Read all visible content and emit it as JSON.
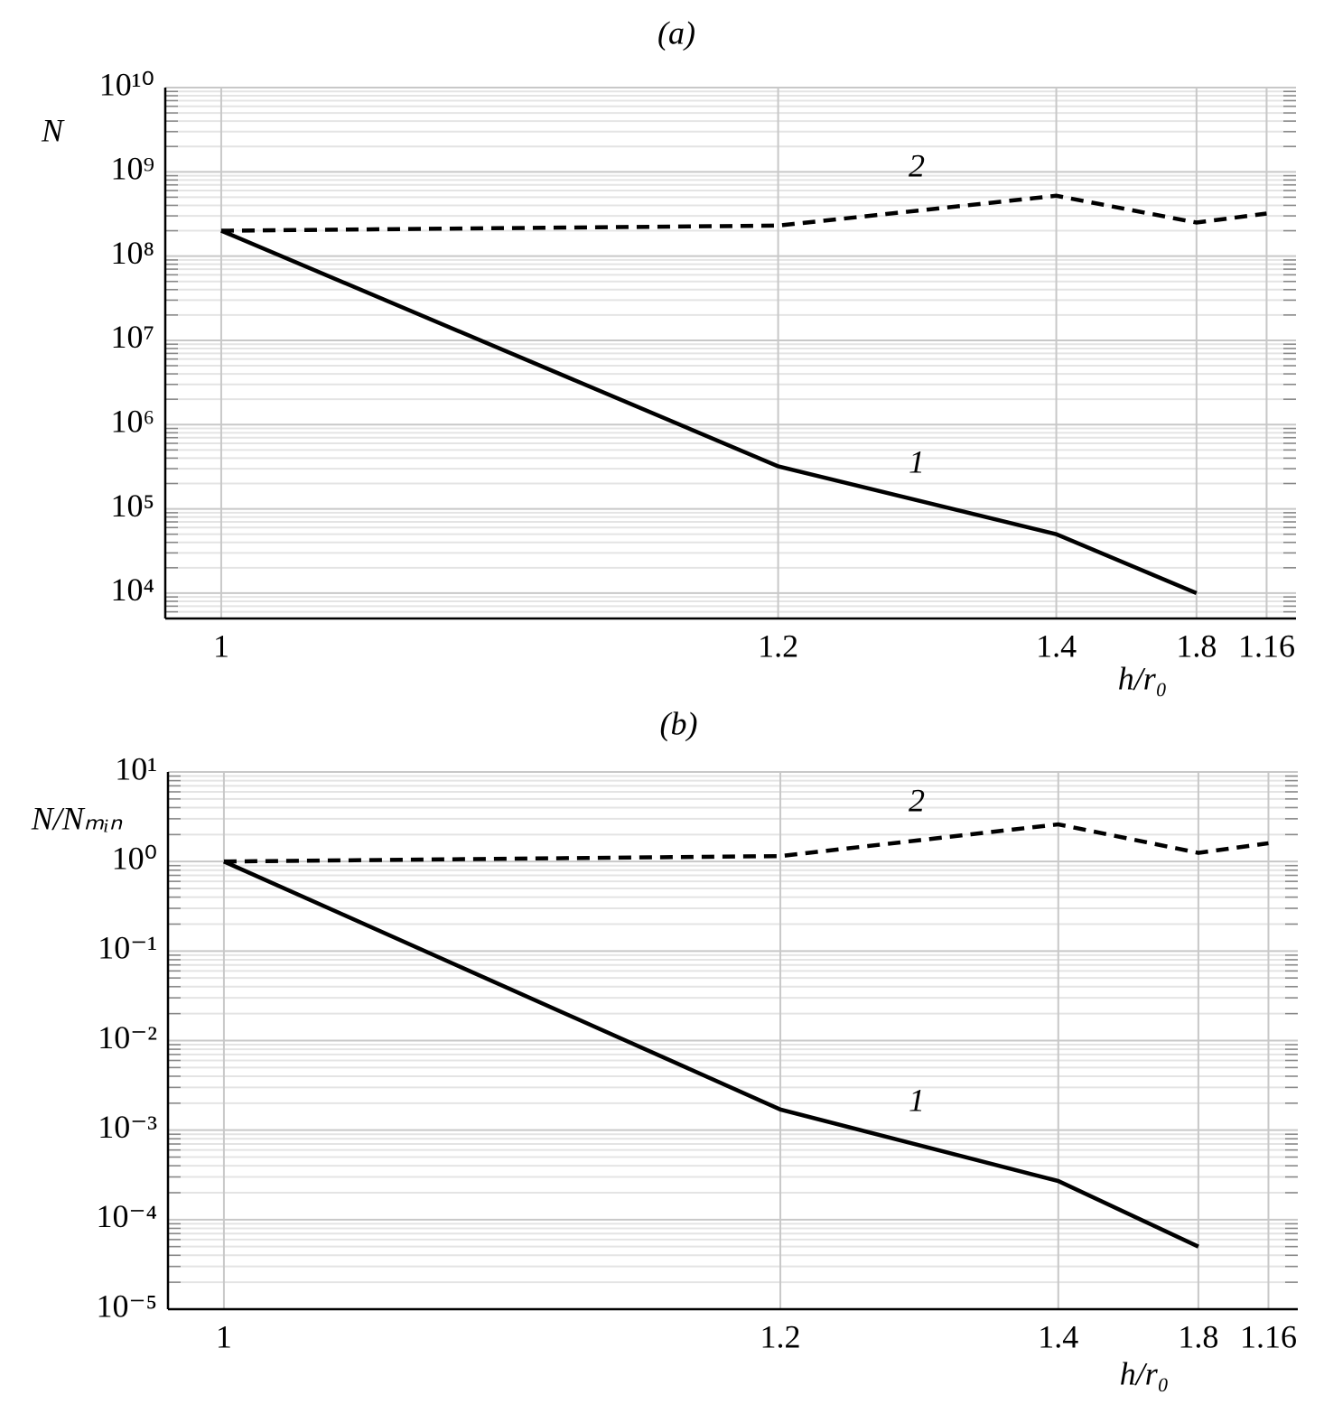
{
  "chart_data": [
    {
      "type": "line",
      "title": "(a)",
      "ylabel": "N",
      "xlabel": "h/r₀",
      "ylog": true,
      "grid": true,
      "categories": [
        "1",
        "1.2",
        "1.4",
        "1.8",
        "1.16"
      ],
      "ylim": [
        5000,
        10000000000
      ],
      "yticks": [
        {
          "value": 10000,
          "label": "10⁴"
        },
        {
          "value": 100000,
          "label": "10⁵"
        },
        {
          "value": 1000000,
          "label": "10⁶"
        },
        {
          "value": 10000000,
          "label": "10⁷"
        },
        {
          "value": 100000000,
          "label": "10⁸"
        },
        {
          "value": 1000000000,
          "label": "10⁹"
        },
        {
          "value": 10000000000,
          "label": "10¹⁰"
        }
      ],
      "series": [
        {
          "name": "1",
          "color": "#000000",
          "dash": false,
          "values": [
            200000000,
            320000,
            50000,
            10000,
            null
          ]
        },
        {
          "name": "2",
          "color": "#000000",
          "dash": true,
          "values": [
            200000000,
            230000000,
            520000000,
            250000000,
            320000000
          ]
        }
      ]
    },
    {
      "type": "line",
      "title": "(b)",
      "ylabel": "N/Nₘᵢₙ",
      "xlabel": "h/r₀",
      "ylog": true,
      "grid": true,
      "categories": [
        "1",
        "1.2",
        "1.4",
        "1.8",
        "1.16"
      ],
      "ylim": [
        1e-05,
        10
      ],
      "yticks": [
        {
          "value": 1e-05,
          "label": "10⁻⁵"
        },
        {
          "value": 0.0001,
          "label": "10⁻⁴"
        },
        {
          "value": 0.001,
          "label": "10⁻³"
        },
        {
          "value": 0.01,
          "label": "10⁻²"
        },
        {
          "value": 0.1,
          "label": "10⁻¹"
        },
        {
          "value": 1,
          "label": "10⁰"
        },
        {
          "value": 10,
          "label": "10¹"
        }
      ],
      "series": [
        {
          "name": "1",
          "color": "#000000",
          "dash": false,
          "values": [
            1,
            0.0017,
            0.00027,
            5e-05,
            null
          ]
        },
        {
          "name": "2",
          "color": "#000000",
          "dash": true,
          "values": [
            1,
            1.15,
            2.6,
            1.25,
            1.6
          ]
        }
      ]
    }
  ]
}
